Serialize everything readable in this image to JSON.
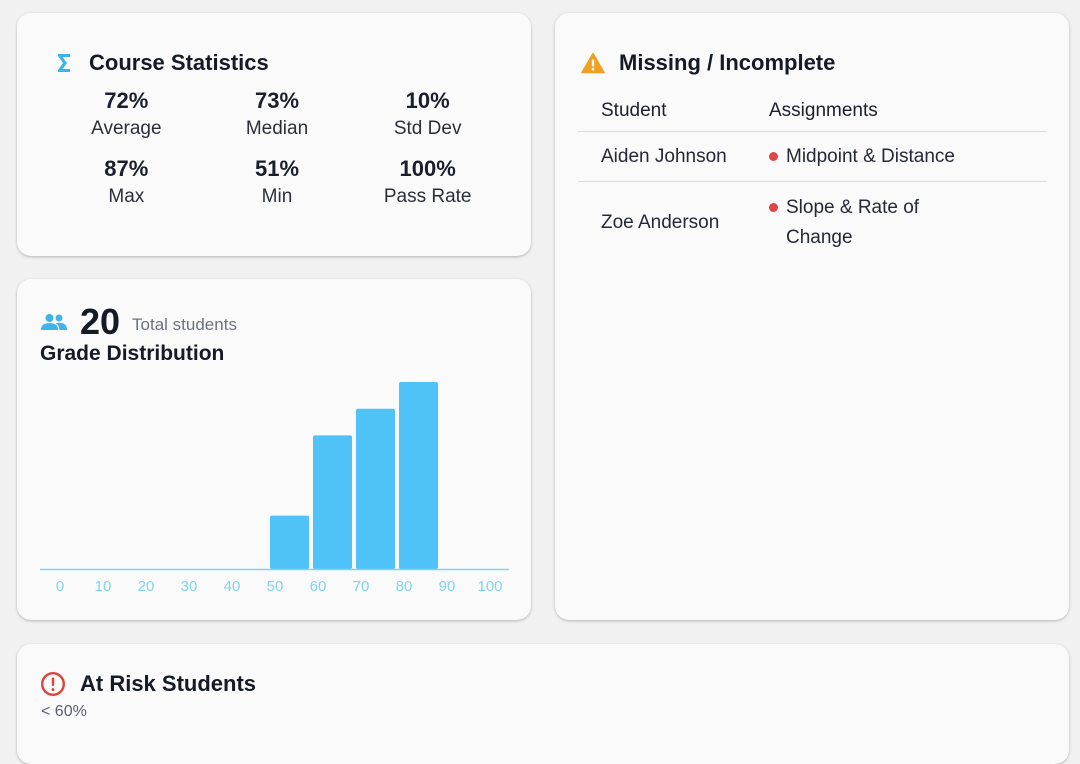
{
  "stats": {
    "title": "Course Statistics",
    "items": [
      {
        "value": "72%",
        "label": "Average"
      },
      {
        "value": "73%",
        "label": "Median"
      },
      {
        "value": "10%",
        "label": "Std Dev"
      },
      {
        "value": "87%",
        "label": "Max"
      },
      {
        "value": "51%",
        "label": "Min"
      },
      {
        "value": "100%",
        "label": "Pass Rate"
      }
    ]
  },
  "missing": {
    "title": "Missing / Incomplete",
    "headers": {
      "student": "Student",
      "assignments": "Assignments"
    },
    "rows": [
      {
        "student": "Aiden Johnson",
        "assignments": [
          "Midpoint & Distance"
        ]
      },
      {
        "student": "Zoe Anderson",
        "assignments": [
          "Slope & Rate of Change"
        ]
      }
    ]
  },
  "distribution": {
    "total": "20",
    "total_label": "Total students",
    "title": "Grade Distribution"
  },
  "chart_data": {
    "type": "bar",
    "categories": [
      "0",
      "10",
      "20",
      "30",
      "40",
      "50",
      "60",
      "70",
      "80",
      "90",
      "100"
    ],
    "values": [
      0,
      0,
      0,
      0,
      0,
      2,
      5,
      6,
      7,
      0,
      0
    ],
    "xlabel": "",
    "ylabel": "",
    "ylim": [
      0,
      7
    ],
    "grid": false,
    "colors": {
      "bar": "#4fc3f7",
      "axis": "#7fd3f2",
      "tick": "#7fd3f2"
    }
  },
  "at_risk": {
    "title": "At Risk Students",
    "subtitle": "< 60%"
  },
  "colors": {
    "accent": "#3eb4ea",
    "warning": "#f0a020",
    "danger": "#d9443c"
  },
  "icons": {
    "stats": "sigma-icon",
    "missing": "warning-triangle-icon",
    "students": "people-icon",
    "risk": "alert-circle-icon"
  }
}
